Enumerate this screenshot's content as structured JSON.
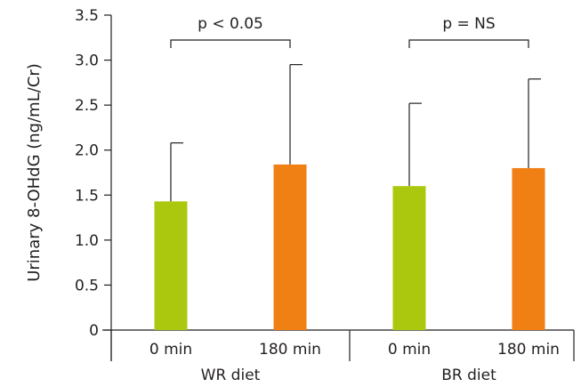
{
  "chart_data": {
    "type": "bar",
    "title": "",
    "xlabel": "",
    "ylabel": "Urinary 8-OHdG (ng/mL/Cr)",
    "ylim": [
      0,
      3.5
    ],
    "yticks": [
      "0",
      "0.5",
      "1.0",
      "1.5",
      "2.0",
      "2.5",
      "3.0",
      "3.5"
    ],
    "grid": false,
    "legend": "none",
    "groups": [
      {
        "name": "WR diet",
        "significance": "p < 0.05",
        "bars": [
          {
            "category": "0 min",
            "value": 1.43,
            "error_upper": 2.08,
            "color": "#acc80e"
          },
          {
            "category": "180 min",
            "value": 1.84,
            "error_upper": 2.95,
            "color": "#f07f14"
          }
        ]
      },
      {
        "name": "BR diet",
        "significance": "p = NS",
        "bars": [
          {
            "category": "0 min",
            "value": 1.6,
            "error_upper": 2.52,
            "color": "#acc80e"
          },
          {
            "category": "180 min",
            "value": 1.8,
            "error_upper": 2.79,
            "color": "#f07f14"
          }
        ]
      }
    ]
  }
}
